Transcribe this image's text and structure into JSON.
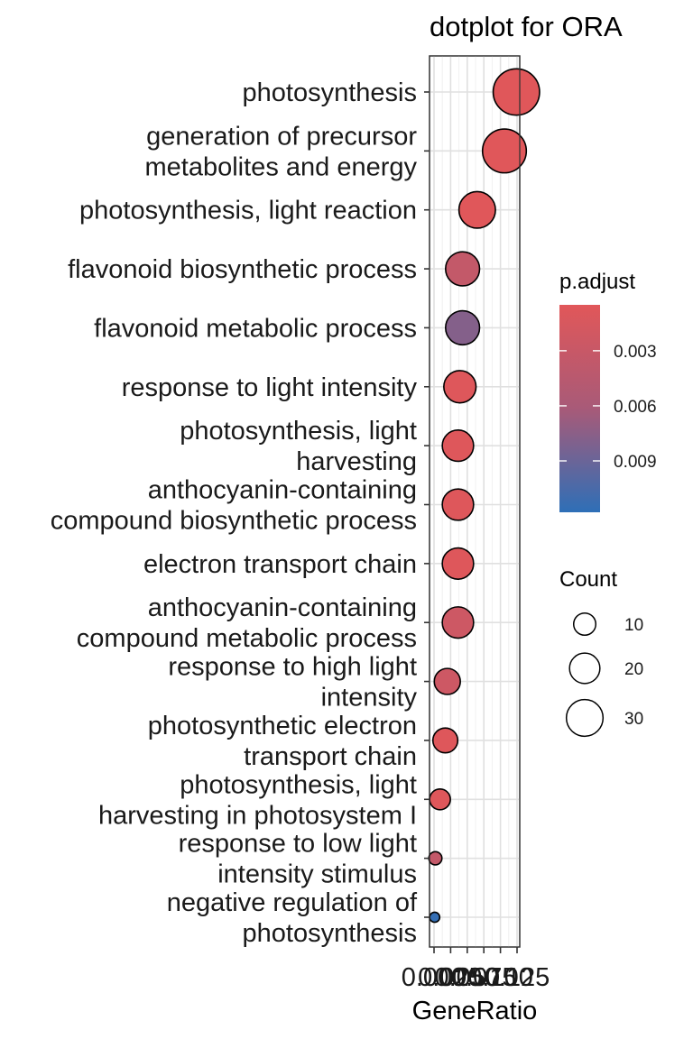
{
  "chart_data": {
    "type": "scatter",
    "title": "dotplot for ORA",
    "xlabel": "GeneRatio",
    "ylabel": "",
    "xlim": [
      0.0,
      0.125
    ],
    "x_ticks": [
      "0.000",
      "0.025",
      "0.050",
      "0.075",
      "0.100",
      "0.125"
    ],
    "grid": true,
    "categories": [
      "photosynthesis",
      "generation of precursor\nmetabolites and energy",
      "photosynthesis, light reaction",
      "flavonoid biosynthetic process",
      "flavonoid metabolic process",
      "response to light intensity",
      "photosynthesis, light\nharvesting",
      "anthocyanin-containing\ncompound biosynthetic process",
      "electron transport chain",
      "anthocyanin-containing\ncompound metabolic process",
      "response to high light\nintensity",
      "photosynthetic electron\ntransport chain",
      "photosynthesis, light\nharvesting in photosystem I",
      "response to low light\nintensity stimulus",
      "negative regulation of\nphotosynthesis"
    ],
    "points": [
      {
        "gene_ratio": 0.124,
        "count": 35,
        "p_adjust": 0.0006
      },
      {
        "gene_ratio": 0.106,
        "count": 31,
        "p_adjust": 0.0006
      },
      {
        "gene_ratio": 0.065,
        "count": 21,
        "p_adjust": 0.0006
      },
      {
        "gene_ratio": 0.043,
        "count": 18,
        "p_adjust": 0.0035
      },
      {
        "gene_ratio": 0.043,
        "count": 18,
        "p_adjust": 0.0078
      },
      {
        "gene_ratio": 0.039,
        "count": 16,
        "p_adjust": 0.0008
      },
      {
        "gene_ratio": 0.036,
        "count": 15,
        "p_adjust": 0.0008
      },
      {
        "gene_ratio": 0.036,
        "count": 15,
        "p_adjust": 0.0008
      },
      {
        "gene_ratio": 0.036,
        "count": 15,
        "p_adjust": 0.0008
      },
      {
        "gene_ratio": 0.036,
        "count": 15,
        "p_adjust": 0.0025
      },
      {
        "gene_ratio": 0.02,
        "count": 10,
        "p_adjust": 0.0025
      },
      {
        "gene_ratio": 0.017,
        "count": 9,
        "p_adjust": 0.0008
      },
      {
        "gene_ratio": 0.009,
        "count": 6,
        "p_adjust": 0.0008
      },
      {
        "gene_ratio": 0.002,
        "count": 2,
        "p_adjust": 0.0035
      },
      {
        "gene_ratio": 0.001,
        "count": 1,
        "p_adjust": 0.0115
      }
    ],
    "legends": {
      "color": {
        "title": "p.adjust",
        "labels": [
          "0.003",
          "0.006",
          "0.009"
        ],
        "values": [
          0.003,
          0.006,
          0.009
        ],
        "range": [
          0.0005,
          0.0118
        ],
        "low_color": "#e15759",
        "high_color": "#2e6fb7",
        "mid_color": "#7a5f95"
      },
      "size": {
        "title": "Count",
        "labels": [
          "10",
          "20",
          "30"
        ],
        "values": [
          10,
          20,
          30
        ]
      },
      "placement": "right"
    }
  }
}
